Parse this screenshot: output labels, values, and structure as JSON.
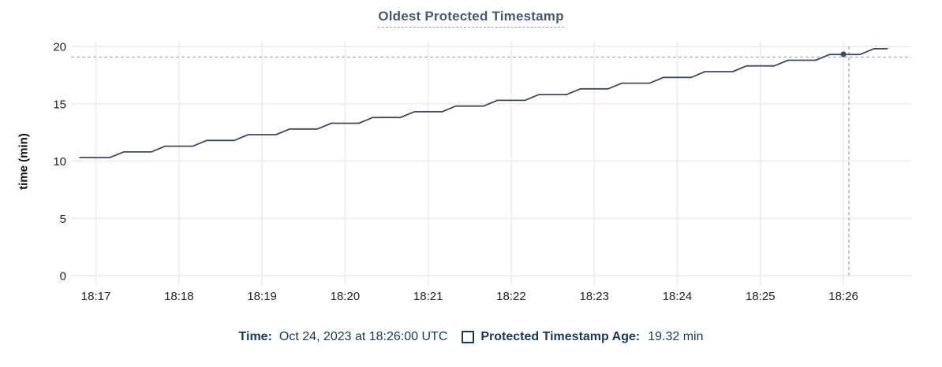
{
  "title": "Oldest Protected Timestamp",
  "y_axis_label": "time (min)",
  "tooltip": {
    "time_label": "Time:",
    "time_value": "Oct 24, 2023 at 18:26:00 UTC",
    "series_label": "Protected Timestamp Age:",
    "series_value": "19.32 min",
    "swatch_icon": "legend-square-outline"
  },
  "colors": {
    "line": "#3b4a61",
    "dot": "#3b4a61",
    "grid": "#efefef",
    "crosshair": "#a3b5c3",
    "title_text": "#475872",
    "legend_text": "#16395e",
    "tick_text": "#222222"
  },
  "chart_data": {
    "type": "line",
    "title": "Oldest Protected Timestamp",
    "xlabel": "",
    "ylabel": "time (min)",
    "grid": true,
    "legend_position": "bottom",
    "x_unit": "seconds after 18:00 UTC, Oct 24 2023",
    "x_domain_seconds": [
      1002,
      1609
    ],
    "x_tick_seconds": [
      1020,
      1080,
      1140,
      1200,
      1260,
      1320,
      1380,
      1440,
      1500,
      1560
    ],
    "x_tick_labels": [
      "18:17",
      "18:18",
      "18:19",
      "18:20",
      "18:21",
      "18:22",
      "18:23",
      "18:24",
      "18:25",
      "18:26"
    ],
    "ylim": [
      0,
      20
    ],
    "y_ticks": [
      0,
      5,
      10,
      15,
      20
    ],
    "series": [
      {
        "name": "Protected Timestamp Age",
        "unit": "min",
        "points": [
          [
            1008,
            10.3
          ],
          [
            1030,
            10.3
          ],
          [
            1040,
            10.8
          ],
          [
            1060,
            10.8
          ],
          [
            1070,
            11.3
          ],
          [
            1090,
            11.3
          ],
          [
            1100,
            11.8
          ],
          [
            1120,
            11.8
          ],
          [
            1130,
            12.3
          ],
          [
            1150,
            12.3
          ],
          [
            1160,
            12.8
          ],
          [
            1180,
            12.8
          ],
          [
            1190,
            13.3
          ],
          [
            1210,
            13.3
          ],
          [
            1220,
            13.8
          ],
          [
            1240,
            13.8
          ],
          [
            1250,
            14.3
          ],
          [
            1270,
            14.3
          ],
          [
            1280,
            14.8
          ],
          [
            1300,
            14.8
          ],
          [
            1310,
            15.3
          ],
          [
            1330,
            15.3
          ],
          [
            1340,
            15.8
          ],
          [
            1360,
            15.8
          ],
          [
            1370,
            16.3
          ],
          [
            1390,
            16.3
          ],
          [
            1400,
            16.8
          ],
          [
            1420,
            16.8
          ],
          [
            1430,
            17.3
          ],
          [
            1450,
            17.3
          ],
          [
            1460,
            17.8
          ],
          [
            1480,
            17.8
          ],
          [
            1490,
            18.3
          ],
          [
            1510,
            18.3
          ],
          [
            1520,
            18.8
          ],
          [
            1540,
            18.8
          ],
          [
            1550,
            19.3
          ],
          [
            1572,
            19.3
          ],
          [
            1582,
            19.8
          ],
          [
            1592,
            19.8
          ]
        ]
      }
    ],
    "crosshair": {
      "time_label": "18:26:00",
      "time_seconds": 1560,
      "value_min": 19.32
    }
  }
}
